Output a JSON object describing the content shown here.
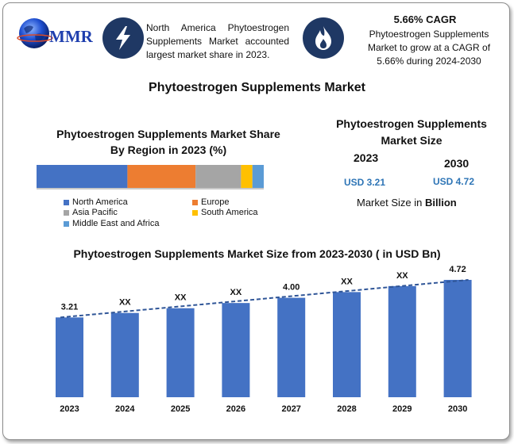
{
  "logo": {
    "text": "MMR"
  },
  "header": {
    "info_text": "North America Phytoestrogen Supplements Market accounted largest market share in 2023.",
    "cagr_title": "5.66% CAGR",
    "cagr_text": "Phytoestrogen Supplements Market to grow at a CAGR of 5.66% during 2024-2030"
  },
  "main_title": "Phytoestrogen Supplements Market",
  "share": {
    "title_line1": "Phytoestrogen Supplements Market Share",
    "title_line2": "By Region in 2023 (%)"
  },
  "market_size": {
    "title_line1": "Phytoestrogen Supplements",
    "title_line2": "Market Size",
    "year_a": "2023",
    "year_b": "2030",
    "value_a": "USD 3.21",
    "value_b": "USD 4.72",
    "unit_prefix": "Market Size in ",
    "unit_bold": "Billion"
  },
  "colors": {
    "navy": "#1f3864",
    "accent_blue": "#2e75b6",
    "bar": "#4472c4",
    "trend": "#2f5597"
  },
  "chart_data": [
    {
      "type": "bar",
      "orientation": "horizontal-stacked",
      "series": [
        {
          "name": "North America",
          "value": 40,
          "color": "#4472c4"
        },
        {
          "name": "Europe",
          "value": 30,
          "color": "#ed7d31"
        },
        {
          "name": "Asia Pacific",
          "value": 20,
          "color": "#a5a5a5"
        },
        {
          "name": "South America",
          "value": 5,
          "color": "#ffc000"
        },
        {
          "name": "Middle East and Africa",
          "value": 5,
          "color": "#5b9bd5"
        }
      ],
      "legend": "bottom"
    },
    {
      "type": "bar",
      "title": "Phytoestrogen Supplements Market Size from 2023-2030 ( in USD Bn)",
      "categories": [
        "2023",
        "2024",
        "2025",
        "2026",
        "2027",
        "2028",
        "2029",
        "2030"
      ],
      "values": [
        3.21,
        3.39,
        3.58,
        3.79,
        4.0,
        4.23,
        4.47,
        4.72
      ],
      "labels": [
        "3.21",
        "XX",
        "XX",
        "XX",
        "4.00",
        "XX",
        "XX",
        "4.72"
      ],
      "trendline": "dashed",
      "ylim": [
        0,
        4.72
      ]
    }
  ]
}
